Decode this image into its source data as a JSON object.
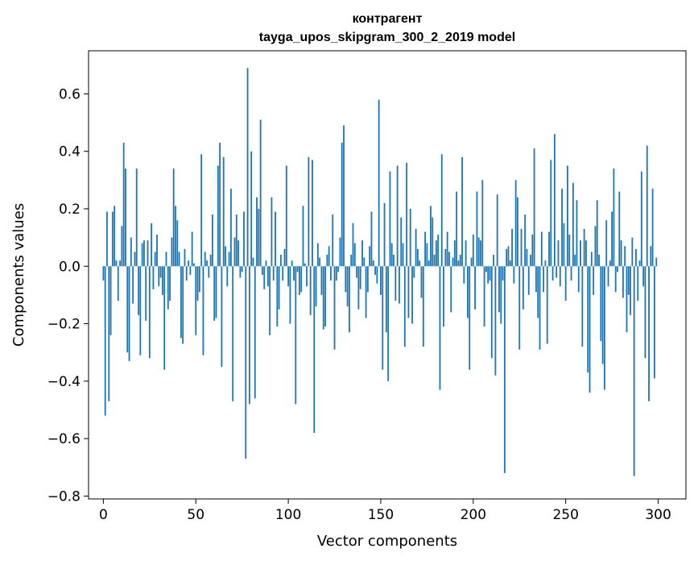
{
  "chart_data": {
    "type": "bar",
    "title": "контрагент",
    "subtitle": "tayga_upos_skipgram_300_2_2019 model",
    "xlabel": "Vector components",
    "ylabel": "Components values",
    "xlim": [
      -8,
      315
    ],
    "ylim": [
      -0.81,
      0.75
    ],
    "xticks": [
      0,
      50,
      100,
      150,
      200,
      250,
      300
    ],
    "xtick_labels": [
      "0",
      "50",
      "100",
      "150",
      "200",
      "250",
      "300"
    ],
    "yticks": [
      0.6,
      0.4,
      0.2,
      0.0,
      -0.2,
      -0.4,
      -0.6,
      -0.8
    ],
    "ytick_labels": [
      "0.6",
      "0.4",
      "0.2",
      "0.0",
      "−0.2",
      "−0.4",
      "−0.6",
      "−0.8"
    ],
    "grid": false,
    "bar_color": "#1f77b4",
    "x": [
      0,
      1,
      2,
      3,
      4,
      5,
      6,
      7,
      8,
      9,
      10,
      11,
      12,
      13,
      14,
      15,
      16,
      17,
      18,
      19,
      20,
      21,
      22,
      23,
      24,
      25,
      26,
      27,
      28,
      29,
      30,
      31,
      32,
      33,
      34,
      35,
      36,
      37,
      38,
      39,
      40,
      41,
      42,
      43,
      44,
      45,
      46,
      47,
      48,
      49,
      50,
      51,
      52,
      53,
      54,
      55,
      56,
      57,
      58,
      59,
      60,
      61,
      62,
      63,
      64,
      65,
      66,
      67,
      68,
      69,
      70,
      71,
      72,
      73,
      74,
      75,
      76,
      77,
      78,
      79,
      80,
      81,
      82,
      83,
      84,
      85,
      86,
      87,
      88,
      89,
      90,
      91,
      92,
      93,
      94,
      95,
      96,
      97,
      98,
      99,
      100,
      101,
      102,
      103,
      104,
      105,
      106,
      107,
      108,
      109,
      110,
      111,
      112,
      113,
      114,
      115,
      116,
      117,
      118,
      119,
      120,
      121,
      122,
      123,
      124,
      125,
      126,
      127,
      128,
      129,
      130,
      131,
      132,
      133,
      134,
      135,
      136,
      137,
      138,
      139,
      140,
      141,
      142,
      143,
      144,
      145,
      146,
      147,
      148,
      149,
      150,
      151,
      152,
      153,
      154,
      155,
      156,
      157,
      158,
      159,
      160,
      161,
      162,
      163,
      164,
      165,
      166,
      167,
      168,
      169,
      170,
      171,
      172,
      173,
      174,
      175,
      176,
      177,
      178,
      179,
      180,
      181,
      182,
      183,
      184,
      185,
      186,
      187,
      188,
      189,
      190,
      191,
      192,
      193,
      194,
      195,
      196,
      197,
      198,
      199,
      200,
      201,
      202,
      203,
      204,
      205,
      206,
      207,
      208,
      209,
      210,
      211,
      212,
      213,
      214,
      215,
      216,
      217,
      218,
      219,
      220,
      221,
      222,
      223,
      224,
      225,
      226,
      227,
      228,
      229,
      230,
      231,
      232,
      233,
      234,
      235,
      236,
      237,
      238,
      239,
      240,
      241,
      242,
      243,
      244,
      245,
      246,
      247,
      248,
      249,
      250,
      251,
      252,
      253,
      254,
      255,
      256,
      257,
      258,
      259,
      260,
      261,
      262,
      263,
      264,
      265,
      266,
      267,
      268,
      269,
      270,
      271,
      272,
      273,
      274,
      275,
      276,
      277,
      278,
      279,
      280,
      281,
      282,
      283,
      284,
      285,
      286,
      287,
      288,
      289,
      290,
      291,
      292,
      293,
      294,
      295,
      296,
      297,
      298,
      299
    ],
    "values": [
      -0.05,
      -0.52,
      0.19,
      -0.47,
      -0.24,
      0.19,
      0.21,
      0.02,
      -0.12,
      0.02,
      0.14,
      0.43,
      0.34,
      -0.3,
      -0.33,
      0.1,
      -0.13,
      0.05,
      0.34,
      -0.17,
      -0.31,
      0.08,
      0.09,
      -0.19,
      0.09,
      -0.32,
      0.15,
      -0.08,
      0.05,
      0.11,
      -0.07,
      -0.04,
      -0.1,
      -0.36,
      0.05,
      -0.15,
      -0.12,
      0.1,
      0.34,
      0.21,
      0.16,
      0.05,
      -0.25,
      -0.27,
      0.06,
      -0.05,
      0.02,
      -0.03,
      0.12,
      0.01,
      -0.24,
      -0.12,
      -0.09,
      0.39,
      -0.31,
      0.05,
      0.02,
      -0.04,
      0.04,
      0.18,
      -0.19,
      -0.18,
      0.35,
      0.43,
      -0.35,
      0.38,
      0.07,
      -0.07,
      0.05,
      0.27,
      -0.47,
      0.1,
      0.18,
      0.09,
      -0.04,
      -0.02,
      0.19,
      -0.67,
      0.69,
      -0.48,
      0.4,
      0.03,
      -0.46,
      0.24,
      0.2,
      0.51,
      -0.03,
      -0.08,
      0.02,
      -0.07,
      -0.24,
      0.24,
      -0.05,
      0.19,
      -0.21,
      -0.15,
      0.04,
      -0.05,
      0.06,
      0.35,
      -0.07,
      -0.2,
      0.02,
      -0.05,
      -0.48,
      -0.02,
      -0.1,
      -0.09,
      0.21,
      0.01,
      -0.07,
      0.38,
      -0.17,
      0.37,
      -0.58,
      -0.14,
      0.08,
      0.03,
      -0.1,
      -0.22,
      -0.21,
      0.04,
      0.07,
      -0.05,
      0.18,
      -0.29,
      -0.05,
      -0.02,
      0.1,
      0.43,
      0.49,
      -0.09,
      -0.14,
      -0.23,
      0.04,
      0.15,
      0.08,
      -0.04,
      -0.15,
      -0.08,
      0.09,
      0.03,
      -0.18,
      -0.09,
      0.07,
      0.19,
      0.02,
      -0.03,
      -0.06,
      0.58,
      -0.1,
      -0.36,
      0.22,
      -0.23,
      -0.4,
      0.33,
      0.08,
      0.04,
      -0.12,
      0.35,
      -0.13,
      0.17,
      0.08,
      -0.28,
      0.36,
      -0.18,
      0.2,
      -0.2,
      -0.04,
      0.13,
      0.06,
      0.02,
      -0.11,
      -0.28,
      0.12,
      0.08,
      0.02,
      0.21,
      0.17,
      0.04,
      0.09,
      0.11,
      -0.43,
      0.39,
      -0.21,
      0.06,
      0.12,
      0.05,
      -0.16,
      0.03,
      0.09,
      0.26,
      0.02,
      0.04,
      0.38,
      -0.06,
      0.09,
      -0.18,
      -0.36,
      0.03,
      0.11,
      -0.15,
      0.26,
      0.1,
      0.09,
      0.3,
      -0.21,
      -0.02,
      -0.06,
      -0.05,
      -0.32,
      0.04,
      -0.38,
      0.25,
      -0.16,
      -0.2,
      -0.05,
      -0.72,
      0.06,
      0.07,
      0.02,
      0.13,
      -0.06,
      0.3,
      0.24,
      -0.29,
      0.13,
      -0.15,
      0.18,
      0.06,
      -0.1,
      0.04,
      0.11,
      0.41,
      -0.09,
      -0.18,
      -0.29,
      0.12,
      -0.09,
      0.02,
      -0.27,
      0.12,
      0.37,
      -0.05,
      0.46,
      -0.04,
      0.09,
      -0.07,
      0.27,
      0.15,
      -0.12,
      0.35,
      0.11,
      -0.05,
      0.29,
      0.04,
      0.23,
      -0.09,
      0.09,
      -0.28,
      0.13,
      0.09,
      -0.37,
      -0.44,
      0.05,
      -0.1,
      0.14,
      0.23,
      0.04,
      -0.26,
      -0.34,
      -0.43,
      0.16,
      -0.07,
      0.02,
      0.19,
      0.34,
      -0.09,
      -0.02,
      0.26,
      0.09,
      -0.11,
      0.07,
      -0.23,
      -0.1,
      -0.17,
      0.1,
      -0.73,
      0.06,
      -0.12,
      0.02,
      0.33,
      -0.07,
      -0.32,
      0.42,
      -0.47,
      0.07,
      0.27,
      -0.39,
      0.03
    ]
  }
}
